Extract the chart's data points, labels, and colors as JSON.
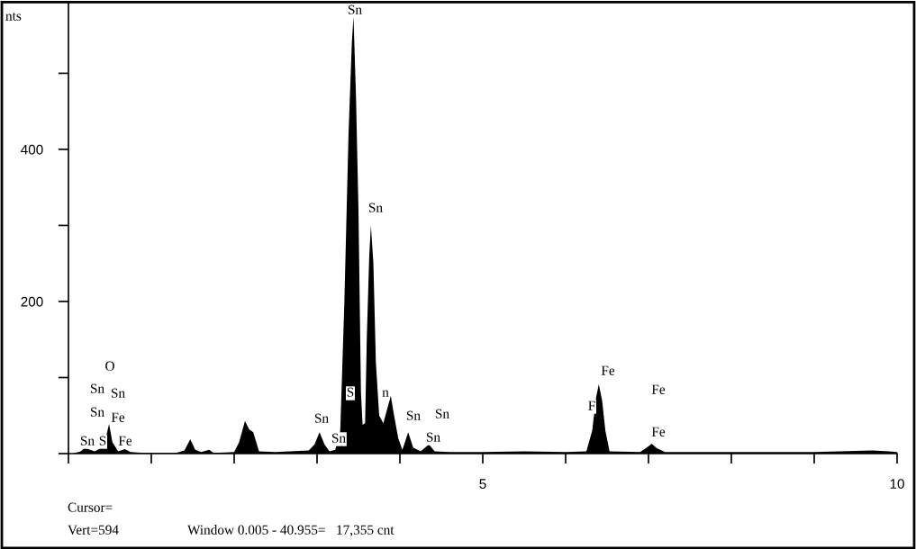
{
  "chart_data": {
    "type": "area",
    "ylabel": "nts",
    "xlim": [
      0,
      10
    ],
    "ylim": [
      0,
      594
    ],
    "xticks": [
      {
        "value": 0,
        "label": null
      },
      {
        "value": 1,
        "label": null
      },
      {
        "value": 2,
        "label": null
      },
      {
        "value": 3,
        "label": null
      },
      {
        "value": 4,
        "label": null
      },
      5,
      {
        "value": 6,
        "label": null
      },
      {
        "value": 7,
        "label": null
      },
      {
        "value": 8,
        "label": null
      },
      {
        "value": 9,
        "label": null
      },
      10
    ],
    "yticks": [
      {
        "value": 0,
        "label": null
      },
      {
        "value": 100,
        "label": null
      },
      200,
      {
        "value": 300,
        "label": null
      },
      400,
      {
        "value": 500,
        "label": null
      }
    ],
    "grid": false,
    "series": [
      {
        "color": "#000000",
        "x": [
          0.05,
          0.15,
          0.2,
          0.26,
          0.32,
          0.4,
          0.45,
          0.49,
          0.53,
          0.6,
          0.68,
          0.75,
          0.9,
          1.3,
          1.4,
          1.47,
          1.53,
          1.6,
          1.7,
          1.75,
          2.0,
          2.06,
          2.13,
          2.18,
          2.23,
          2.3,
          2.5,
          2.9,
          2.97,
          3.03,
          3.09,
          3.15,
          3.22,
          3.28,
          3.33,
          3.38,
          3.42,
          3.44,
          3.47,
          3.5,
          3.53,
          3.55,
          3.58,
          3.6,
          3.63,
          3.65,
          3.68,
          3.71,
          3.75,
          3.8,
          3.85,
          3.89,
          3.93,
          3.98,
          4.03,
          4.1,
          4.16,
          4.25,
          4.35,
          4.42,
          4.6,
          5.0,
          5.5,
          6.0,
          6.25,
          6.32,
          6.37,
          6.4,
          6.44,
          6.48,
          6.53,
          6.9,
          6.98,
          7.04,
          7.1,
          7.2,
          8.0,
          9.0,
          9.7,
          9.9,
          10.0
        ],
        "values": [
          0,
          3,
          8,
          5,
          3,
          8,
          20,
          39,
          15,
          3,
          6,
          2,
          1,
          1,
          4,
          19,
          5,
          2,
          5,
          1,
          2,
          15,
          43,
          32,
          28,
          3,
          2,
          4,
          12,
          28,
          12,
          3,
          5,
          30,
          200,
          420,
          540,
          575,
          470,
          320,
          80,
          38,
          40,
          150,
          260,
          300,
          250,
          120,
          50,
          40,
          60,
          76,
          50,
          20,
          5,
          28,
          8,
          3,
          12,
          3,
          2,
          2,
          3,
          2,
          3,
          30,
          75,
          91,
          70,
          30,
          3,
          2,
          8,
          13,
          7,
          2,
          2,
          2,
          4,
          3,
          2
        ]
      }
    ],
    "annotations": [
      "Sn",
      "Sn",
      "O",
      "Sn",
      "Sn",
      "Sn",
      "Fe",
      "Sn",
      "S",
      "Fe",
      "Sn",
      "Sn",
      "S",
      "n",
      "Sn",
      "Sn",
      "Sn",
      "Fe",
      "F",
      "Fe",
      "Fe",
      "Cursor=",
      "Vert=594",
      "Window 0.005 - 40.955=   17,355 cnt"
    ]
  }
}
